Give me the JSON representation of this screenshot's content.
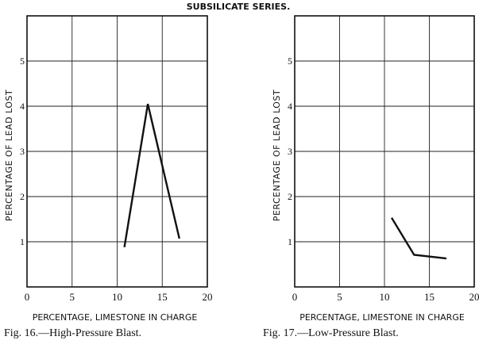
{
  "series_title": "SUBSILICATE SERIES.",
  "chart_data": [
    {
      "type": "line",
      "caption": "Fig. 16.—High-Pressure Blast.",
      "xlabel": "PERCENTAGE, LIMESTONE IN CHARGE",
      "ylabel": "PERCENTAGE OF LEAD LOST",
      "xlim": [
        0,
        20
      ],
      "ylim": [
        0,
        6
      ],
      "xticks": [
        "0",
        "5",
        "10",
        "15",
        "20"
      ],
      "yticks": [
        "1",
        "2",
        "3",
        "4",
        "5"
      ],
      "grid": true,
      "x": [
        10.8,
        13.4,
        16.9
      ],
      "y": [
        0.88,
        4.05,
        1.07
      ]
    },
    {
      "type": "line",
      "caption": "Fig. 17.—Low-Pressure Blast.",
      "xlabel": "PERCENTAGE, LIMESTONE IN CHARGE",
      "ylabel": "PERCENTAGE OF LEAD LOST",
      "xlim": [
        0,
        20
      ],
      "ylim": [
        0,
        6
      ],
      "xticks": [
        "0",
        "5",
        "10",
        "15",
        "20"
      ],
      "yticks": [
        "1",
        "2",
        "3",
        "4",
        "5"
      ],
      "grid": true,
      "x": [
        10.8,
        13.3,
        16.9
      ],
      "y": [
        1.53,
        0.71,
        0.63
      ]
    }
  ]
}
